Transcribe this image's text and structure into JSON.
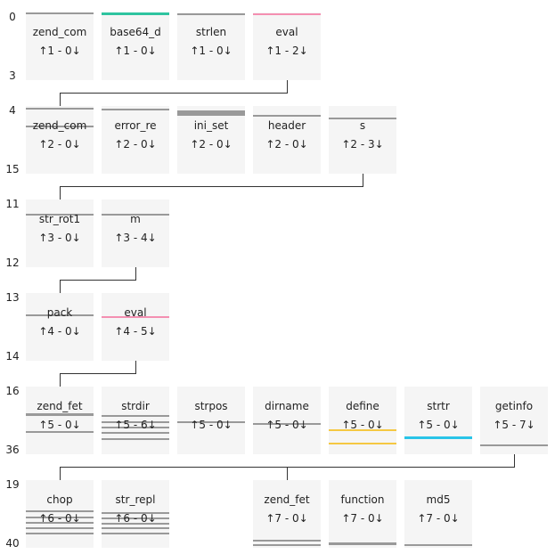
{
  "row_labels": [
    {
      "start": "0",
      "end": "3"
    },
    {
      "start": "4",
      "end": "15"
    },
    {
      "start": "11",
      "end": "12"
    },
    {
      "start": "13",
      "end": "14"
    },
    {
      "start": "16",
      "end": "36"
    },
    {
      "start": "19",
      "end": "40"
    }
  ],
  "colors": {
    "gray": "#999999",
    "teal": "#2ec4a0",
    "pink": "#f48fb1",
    "yellow": "#f5c842",
    "cyan": "#29c4e8"
  },
  "rows": [
    {
      "connector": [
        0,
        3
      ],
      "tiles": [
        {
          "col": 0,
          "name": "zend_com",
          "up": "1",
          "down": "0",
          "bars": [
            {
              "y": 0,
              "h": 2,
              "c": "gray"
            }
          ]
        },
        {
          "col": 1,
          "name": "base64_d",
          "up": "1",
          "down": "0",
          "bars": [
            {
              "y": 0,
              "h": 3,
              "c": "teal"
            }
          ]
        },
        {
          "col": 2,
          "name": "strlen",
          "up": "1",
          "down": "0",
          "bars": [
            {
              "y": 1,
              "h": 2,
              "c": "gray"
            }
          ]
        },
        {
          "col": 3,
          "name": "eval",
          "up": "1",
          "down": "2",
          "bars": [
            {
              "y": 1,
              "h": 2,
              "c": "pink"
            }
          ]
        }
      ]
    },
    {
      "connector": [
        0,
        4
      ],
      "tiles": [
        {
          "col": 0,
          "name": "zend_com",
          "up": "2",
          "down": "0",
          "bars": [
            {
              "y": 2,
              "h": 2,
              "c": "gray"
            },
            {
              "y": 22,
              "h": 2,
              "c": "gray"
            }
          ]
        },
        {
          "col": 1,
          "name": "error_re",
          "up": "2",
          "down": "0",
          "bars": [
            {
              "y": 3,
              "h": 2,
              "c": "gray"
            }
          ]
        },
        {
          "col": 2,
          "name": "ini_set",
          "up": "2",
          "down": "0",
          "bars": [
            {
              "y": 5,
              "h": 6,
              "c": "gray"
            }
          ]
        },
        {
          "col": 3,
          "name": "header",
          "up": "2",
          "down": "0",
          "bars": [
            {
              "y": 10,
              "h": 2,
              "c": "gray"
            }
          ]
        },
        {
          "col": 4,
          "name": "s",
          "up": "2",
          "down": "3",
          "bars": [
            {
              "y": 13,
              "h": 2,
              "c": "gray"
            }
          ]
        }
      ]
    },
    {
      "connector": [
        0,
        1
      ],
      "tiles": [
        {
          "col": 0,
          "name": "str_rot1",
          "up": "3",
          "down": "0",
          "bars": [
            {
              "y": 16,
              "h": 2,
              "c": "gray"
            }
          ]
        },
        {
          "col": 1,
          "name": "m",
          "up": "3",
          "down": "4",
          "bars": [
            {
              "y": 16,
              "h": 2,
              "c": "gray"
            }
          ]
        }
      ]
    },
    {
      "connector": [
        0,
        1
      ],
      "tiles": [
        {
          "col": 0,
          "name": "pack",
          "up": "4",
          "down": "0",
          "bars": [
            {
              "y": 24,
              "h": 2,
              "c": "gray"
            }
          ]
        },
        {
          "col": 1,
          "name": "eval",
          "up": "4",
          "down": "5",
          "bars": [
            {
              "y": 26,
              "h": 2,
              "c": "pink"
            }
          ]
        }
      ]
    },
    {
      "connector": [
        0,
        6
      ],
      "tiles": [
        {
          "col": 0,
          "name": "zend_fet",
          "up": "5",
          "down": "0",
          "bars": [
            {
              "y": 30,
              "h": 3,
              "c": "gray"
            },
            {
              "y": 50,
              "h": 2,
              "c": "gray"
            }
          ]
        },
        {
          "col": 1,
          "name": "strdir",
          "up": "5",
          "down": "6",
          "bars": [
            {
              "y": 32,
              "h": 2,
              "c": "gray"
            },
            {
              "y": 39,
              "h": 2,
              "c": "gray"
            },
            {
              "y": 45,
              "h": 2,
              "c": "gray"
            },
            {
              "y": 51,
              "h": 2,
              "c": "gray"
            },
            {
              "y": 58,
              "h": 2,
              "c": "gray"
            }
          ]
        },
        {
          "col": 2,
          "name": "strpos",
          "up": "5",
          "down": "0",
          "bars": [
            {
              "y": 39,
              "h": 2,
              "c": "gray"
            }
          ]
        },
        {
          "col": 3,
          "name": "dirname",
          "up": "5",
          "down": "0",
          "bars": [
            {
              "y": 41,
              "h": 2,
              "c": "gray"
            }
          ]
        },
        {
          "col": 4,
          "name": "define",
          "up": "5",
          "down": "0",
          "bars": [
            {
              "y": 48,
              "h": 2,
              "c": "yellow"
            },
            {
              "y": 63,
              "h": 2,
              "c": "yellow"
            }
          ]
        },
        {
          "col": 5,
          "name": "strtr",
          "up": "5",
          "down": "0",
          "bars": [
            {
              "y": 56,
              "h": 3,
              "c": "cyan"
            }
          ]
        },
        {
          "col": 6,
          "name": "getinfo",
          "up": "5",
          "down": "7",
          "bars": [
            {
              "y": 65,
              "h": 2,
              "c": "gray"
            }
          ]
        }
      ]
    },
    {
      "connector": null,
      "tiles": [
        {
          "col": 0,
          "name": "chop",
          "up": "6",
          "down": "0",
          "bars": [
            {
              "y": 34,
              "h": 2,
              "c": "gray"
            },
            {
              "y": 41,
              "h": 2,
              "c": "gray"
            },
            {
              "y": 47,
              "h": 2,
              "c": "gray"
            },
            {
              "y": 53,
              "h": 2,
              "c": "gray"
            },
            {
              "y": 59,
              "h": 2,
              "c": "gray"
            }
          ]
        },
        {
          "col": 1,
          "name": "str_repl",
          "up": "6",
          "down": "0",
          "bars": [
            {
              "y": 36,
              "h": 2,
              "c": "gray"
            },
            {
              "y": 42,
              "h": 2,
              "c": "gray"
            },
            {
              "y": 48,
              "h": 2,
              "c": "gray"
            },
            {
              "y": 53,
              "h": 2,
              "c": "gray"
            },
            {
              "y": 59,
              "h": 2,
              "c": "gray"
            }
          ]
        },
        {
          "col": 3,
          "name": "zend_fet",
          "up": "7",
          "down": "0",
          "bars": [
            {
              "y": 67,
              "h": 2,
              "c": "gray"
            },
            {
              "y": 72,
              "h": 2,
              "c": "gray"
            }
          ]
        },
        {
          "col": 4,
          "name": "function",
          "up": "7",
          "down": "0",
          "bars": [
            {
              "y": 70,
              "h": 3,
              "c": "gray"
            }
          ]
        },
        {
          "col": 5,
          "name": "md5",
          "up": "7",
          "down": "0",
          "bars": [
            {
              "y": 72,
              "h": 2,
              "c": "gray"
            }
          ]
        }
      ]
    }
  ]
}
